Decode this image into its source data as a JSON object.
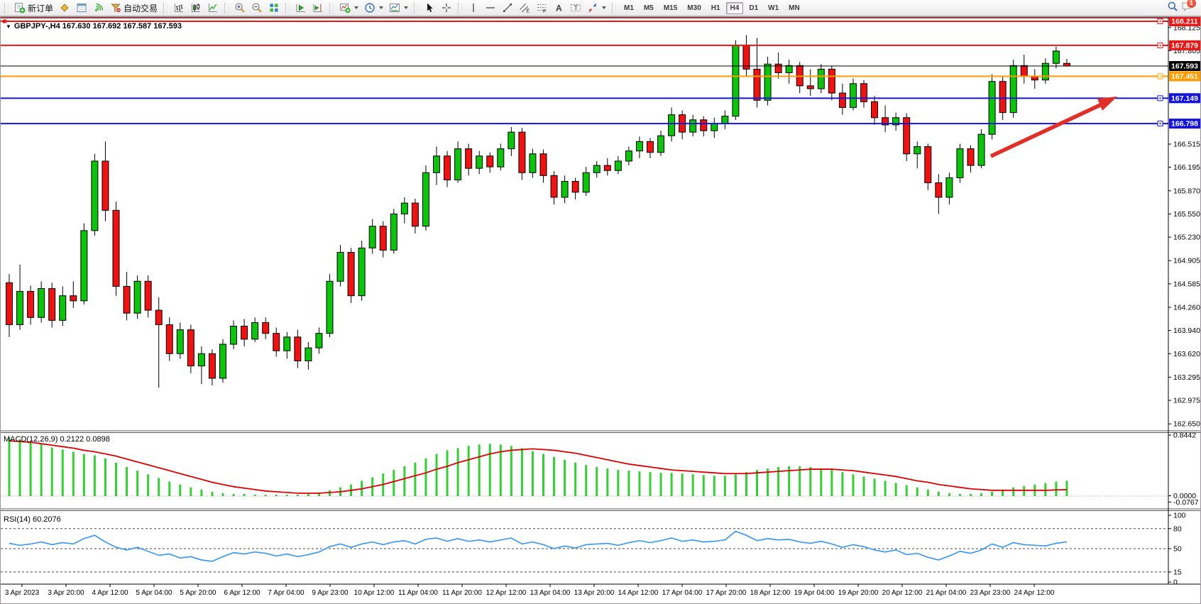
{
  "toolbar": {
    "groups": [
      {
        "items": [
          {
            "icon": "new-order-icon",
            "label": "新订单"
          },
          {
            "icon": "market-watch-icon"
          },
          {
            "icon": "data-window-icon"
          },
          {
            "icon": "signals-icon"
          },
          {
            "icon": "autotrading-icon",
            "label": "自动交易"
          }
        ]
      },
      {
        "items": [
          {
            "icon": "bar-chart-icon"
          },
          {
            "icon": "candle-chart-icon"
          },
          {
            "icon": "line-chart-icon"
          }
        ]
      },
      {
        "items": [
          {
            "icon": "zoom-in-icon"
          },
          {
            "icon": "zoom-out-icon"
          },
          {
            "icon": "tile-windows-icon"
          }
        ]
      },
      {
        "items": [
          {
            "icon": "auto-scroll-icon"
          },
          {
            "icon": "chart-shift-icon"
          }
        ]
      },
      {
        "items": [
          {
            "icon": "indicators-icon",
            "caret": true
          },
          {
            "icon": "periods-icon",
            "caret": true
          },
          {
            "icon": "templates-icon",
            "caret": true
          }
        ]
      },
      {
        "items": [
          {
            "icon": "cursor-icon"
          },
          {
            "icon": "crosshair-icon"
          }
        ]
      },
      {
        "items": [
          {
            "icon": "vline-icon"
          },
          {
            "icon": "hline-icon"
          },
          {
            "icon": "trendline-icon"
          },
          {
            "icon": "channel-icon"
          },
          {
            "icon": "fibonacci-icon"
          },
          {
            "icon": "text-icon"
          },
          {
            "icon": "text-label-icon"
          },
          {
            "icon": "arrows-icon",
            "caret": true
          }
        ]
      }
    ],
    "timeframes": [
      {
        "label": "M1"
      },
      {
        "label": "M5"
      },
      {
        "label": "M15"
      },
      {
        "label": "M30"
      },
      {
        "label": "H1"
      },
      {
        "label": "H4",
        "active": true
      },
      {
        "label": "D1"
      },
      {
        "label": "W1"
      },
      {
        "label": "MN"
      }
    ],
    "right": [
      {
        "icon": "search-icon"
      },
      {
        "icon": "chat-icon",
        "badge": "1"
      }
    ]
  },
  "chart": {
    "symbol_title": "GBPJPY-,H4  167.630 167.692 167.587 167.593",
    "macd_label": "MACD(12,26,9) 0.2122 0.0898",
    "rsi_label": "RSI(14) 60.2076",
    "price_axis_ticks": [
      "168.125",
      "167.805",
      "166.515",
      "166.195",
      "165.870",
      "165.550",
      "165.230",
      "164.905",
      "164.585",
      "164.260",
      "163.940",
      "163.620",
      "163.295",
      "162.975",
      "162.650"
    ],
    "line_labels": [
      {
        "text": "168.211",
        "level": 168.211,
        "color": "#ee1515",
        "style": "resistance"
      },
      {
        "text": "167.879",
        "level": 167.879,
        "color": "#ee1515",
        "style": "resistance"
      },
      {
        "text": "167.593",
        "level": 167.593,
        "color": "#000000",
        "style": "current-price"
      },
      {
        "text": "167.451",
        "level": 167.451,
        "color": "#ff9c00",
        "style": "level"
      },
      {
        "text": "167.149",
        "level": 167.149,
        "color": "#1414dd",
        "style": "support"
      },
      {
        "text": "166.798",
        "level": 166.798,
        "color": "#1414dd",
        "style": "support"
      }
    ],
    "macd_axis": [
      "0.8442",
      "0.0000",
      "-0.0767"
    ],
    "rsi_axis": [
      "100",
      "80",
      "50",
      "15",
      "0"
    ],
    "time_axis": [
      "3 Apr 2023",
      "3 Apr 20:00",
      "4 Apr 12:00",
      "5 Apr 04:00",
      "5 Apr 20:00",
      "6 Apr 12:00",
      "7 Apr 04:00",
      "9 Apr 23:00",
      "10 Apr 12:00",
      "11 Apr 04:00",
      "11 Apr 20:00",
      "12 Apr 12:00",
      "13 Apr 04:00",
      "13 Apr 20:00",
      "14 Apr 12:00",
      "17 Apr 04:00",
      "17 Apr 20:00",
      "18 Apr 12:00",
      "19 Apr 04:00",
      "19 Apr 20:00",
      "20 Apr 12:00",
      "21 Apr 04:00",
      "23 Apr 23:00",
      "24 Apr 12:00"
    ]
  },
  "chart_data": [
    {
      "type": "candlestick",
      "title": "GBPJPY- H4",
      "ylim": [
        162.65,
        168.3
      ],
      "levels": [
        168.211,
        167.879,
        167.593,
        167.451,
        167.149,
        166.798
      ],
      "ohlc": [
        [
          164.6,
          164.72,
          163.85,
          164.02
        ],
        [
          164.02,
          164.85,
          163.95,
          164.48
        ],
        [
          164.48,
          164.56,
          164.02,
          164.12
        ],
        [
          164.12,
          164.62,
          164.05,
          164.52
        ],
        [
          164.52,
          164.6,
          163.98,
          164.08
        ],
        [
          164.08,
          164.55,
          164.0,
          164.42
        ],
        [
          164.42,
          164.62,
          164.25,
          164.35
        ],
        [
          164.35,
          165.42,
          164.3,
          165.32
        ],
        [
          165.32,
          166.38,
          165.25,
          166.28
        ],
        [
          166.28,
          166.55,
          165.45,
          165.6
        ],
        [
          165.6,
          165.72,
          164.42,
          164.55
        ],
        [
          164.55,
          164.75,
          164.08,
          164.18
        ],
        [
          164.18,
          164.7,
          164.1,
          164.62
        ],
        [
          164.62,
          164.7,
          164.12,
          164.22
        ],
        [
          164.22,
          164.4,
          163.15,
          164.02
        ],
        [
          164.02,
          164.12,
          163.52,
          163.62
        ],
        [
          163.62,
          164.05,
          163.55,
          163.95
        ],
        [
          163.95,
          164.02,
          163.35,
          163.45
        ],
        [
          163.45,
          163.72,
          163.2,
          163.62
        ],
        [
          163.62,
          163.68,
          163.18,
          163.28
        ],
        [
          163.28,
          163.82,
          163.22,
          163.75
        ],
        [
          163.75,
          164.08,
          163.68,
          164.0
        ],
        [
          164.0,
          164.1,
          163.72,
          163.82
        ],
        [
          163.82,
          164.12,
          163.78,
          164.05
        ],
        [
          164.05,
          164.12,
          163.82,
          163.9
        ],
        [
          163.9,
          163.98,
          163.58,
          163.66
        ],
        [
          163.66,
          163.92,
          163.55,
          163.85
        ],
        [
          163.85,
          163.95,
          163.42,
          163.52
        ],
        [
          163.52,
          163.78,
          163.4,
          163.7
        ],
        [
          163.7,
          163.98,
          163.62,
          163.9
        ],
        [
          163.9,
          164.72,
          163.85,
          164.62
        ],
        [
          164.62,
          165.12,
          164.55,
          165.02
        ],
        [
          165.02,
          165.08,
          164.32,
          164.42
        ],
        [
          164.42,
          165.18,
          164.35,
          165.08
        ],
        [
          165.08,
          165.48,
          165.0,
          165.38
        ],
        [
          165.38,
          165.45,
          164.95,
          165.05
        ],
        [
          165.05,
          165.62,
          165.0,
          165.55
        ],
        [
          165.55,
          165.78,
          165.42,
          165.7
        ],
        [
          165.7,
          165.76,
          165.28,
          165.38
        ],
        [
          165.38,
          166.22,
          165.32,
          166.12
        ],
        [
          166.12,
          166.48,
          165.95,
          166.35
        ],
        [
          166.35,
          166.42,
          165.92,
          166.02
        ],
        [
          166.02,
          166.55,
          165.98,
          166.45
        ],
        [
          166.45,
          166.52,
          166.08,
          166.18
        ],
        [
          166.18,
          166.42,
          166.1,
          166.35
        ],
        [
          166.35,
          166.4,
          166.12,
          166.2
        ],
        [
          166.2,
          166.52,
          166.15,
          166.45
        ],
        [
          166.45,
          166.75,
          166.35,
          166.68
        ],
        [
          166.68,
          166.74,
          166.02,
          166.12
        ],
        [
          166.12,
          166.45,
          166.05,
          166.38
        ],
        [
          166.38,
          166.44,
          165.98,
          166.08
        ],
        [
          166.08,
          166.14,
          165.68,
          165.78
        ],
        [
          165.78,
          166.08,
          165.7,
          166.0
        ],
        [
          166.0,
          166.05,
          165.75,
          165.85
        ],
        [
          165.85,
          166.2,
          165.8,
          166.12
        ],
        [
          166.12,
          166.28,
          166.05,
          166.22
        ],
        [
          166.22,
          166.32,
          166.08,
          166.15
        ],
        [
          166.15,
          166.35,
          166.1,
          166.28
        ],
        [
          166.28,
          166.48,
          166.22,
          166.42
        ],
        [
          166.42,
          166.62,
          166.32,
          166.55
        ],
        [
          166.55,
          166.6,
          166.32,
          166.4
        ],
        [
          166.4,
          166.7,
          166.35,
          166.63
        ],
        [
          166.63,
          167.02,
          166.55,
          166.92
        ],
        [
          166.92,
          166.98,
          166.58,
          166.68
        ],
        [
          166.68,
          166.92,
          166.62,
          166.85
        ],
        [
          166.85,
          166.9,
          166.62,
          166.7
        ],
        [
          166.7,
          166.88,
          166.6,
          166.8
        ],
        [
          166.8,
          166.98,
          166.72,
          166.9
        ],
        [
          166.9,
          167.95,
          166.85,
          167.88
        ],
        [
          167.88,
          168.02,
          167.45,
          167.55
        ],
        [
          167.55,
          167.98,
          167.02,
          167.12
        ],
        [
          167.12,
          167.72,
          167.05,
          167.62
        ],
        [
          167.62,
          167.78,
          167.42,
          167.5
        ],
        [
          167.5,
          167.68,
          167.35,
          167.6
        ],
        [
          167.6,
          167.65,
          167.22,
          167.32
        ],
        [
          167.32,
          167.55,
          167.18,
          167.28
        ],
        [
          167.28,
          167.62,
          167.22,
          167.55
        ],
        [
          167.55,
          167.6,
          167.12,
          167.22
        ],
        [
          167.22,
          167.35,
          166.92,
          167.02
        ],
        [
          167.02,
          167.42,
          166.98,
          167.35
        ],
        [
          167.35,
          167.4,
          167.02,
          167.1
        ],
        [
          167.1,
          167.18,
          166.78,
          166.88
        ],
        [
          166.88,
          167.05,
          166.68,
          166.78
        ],
        [
          166.78,
          166.95,
          166.7,
          166.88
        ],
        [
          166.88,
          166.94,
          166.28,
          166.38
        ],
        [
          166.38,
          166.55,
          166.18,
          166.48
        ],
        [
          166.48,
          166.52,
          165.88,
          165.98
        ],
        [
          165.98,
          166.1,
          165.55,
          165.78
        ],
        [
          165.78,
          166.12,
          165.68,
          166.05
        ],
        [
          166.05,
          166.52,
          165.98,
          166.45
        ],
        [
          166.45,
          166.5,
          166.12,
          166.22
        ],
        [
          166.22,
          166.72,
          166.18,
          166.65
        ],
        [
          166.65,
          167.48,
          166.58,
          167.38
        ],
        [
          167.38,
          167.45,
          166.85,
          166.95
        ],
        [
          166.95,
          167.68,
          166.88,
          167.6
        ],
        [
          167.6,
          167.75,
          167.35,
          167.45
        ],
        [
          167.45,
          167.55,
          167.28,
          167.4
        ],
        [
          167.4,
          167.7,
          167.35,
          167.63
        ],
        [
          167.63,
          167.86,
          167.56,
          167.8
        ],
        [
          167.63,
          167.692,
          167.587,
          167.593
        ]
      ]
    },
    {
      "type": "bar",
      "title": "MACD(12,26,9)",
      "ylim": [
        -0.0767,
        0.8442
      ],
      "current": [
        0.2122,
        0.0898
      ],
      "values": [
        0.8,
        0.78,
        0.75,
        0.71,
        0.67,
        0.64,
        0.61,
        0.58,
        0.56,
        0.52,
        0.46,
        0.4,
        0.35,
        0.3,
        0.25,
        0.2,
        0.16,
        0.12,
        0.09,
        0.06,
        0.04,
        0.03,
        0.03,
        0.02,
        0.02,
        0.02,
        0.02,
        0.02,
        0.03,
        0.05,
        0.08,
        0.12,
        0.16,
        0.21,
        0.26,
        0.31,
        0.36,
        0.41,
        0.46,
        0.52,
        0.58,
        0.63,
        0.66,
        0.69,
        0.71,
        0.72,
        0.71,
        0.69,
        0.66,
        0.62,
        0.58,
        0.54,
        0.5,
        0.46,
        0.43,
        0.4,
        0.38,
        0.36,
        0.35,
        0.34,
        0.33,
        0.32,
        0.32,
        0.31,
        0.3,
        0.29,
        0.28,
        0.28,
        0.3,
        0.33,
        0.36,
        0.38,
        0.4,
        0.41,
        0.41,
        0.4,
        0.38,
        0.36,
        0.33,
        0.3,
        0.27,
        0.24,
        0.21,
        0.18,
        0.15,
        0.12,
        0.09,
        0.06,
        0.04,
        0.03,
        0.03,
        0.04,
        0.06,
        0.09,
        0.12,
        0.14,
        0.16,
        0.18,
        0.2,
        0.2122
      ],
      "signal": [
        0.76,
        0.75,
        0.74,
        0.72,
        0.7,
        0.68,
        0.66,
        0.63,
        0.61,
        0.58,
        0.55,
        0.51,
        0.47,
        0.43,
        0.39,
        0.35,
        0.31,
        0.27,
        0.23,
        0.19,
        0.16,
        0.13,
        0.11,
        0.09,
        0.07,
        0.06,
        0.05,
        0.04,
        0.04,
        0.04,
        0.05,
        0.06,
        0.08,
        0.1,
        0.13,
        0.16,
        0.2,
        0.24,
        0.28,
        0.32,
        0.37,
        0.41,
        0.46,
        0.5,
        0.54,
        0.58,
        0.61,
        0.63,
        0.64,
        0.65,
        0.64,
        0.63,
        0.61,
        0.59,
        0.56,
        0.53,
        0.5,
        0.47,
        0.44,
        0.42,
        0.4,
        0.38,
        0.36,
        0.35,
        0.34,
        0.33,
        0.32,
        0.31,
        0.31,
        0.31,
        0.32,
        0.33,
        0.34,
        0.35,
        0.36,
        0.37,
        0.37,
        0.37,
        0.36,
        0.35,
        0.33,
        0.31,
        0.29,
        0.27,
        0.24,
        0.21,
        0.19,
        0.16,
        0.14,
        0.12,
        0.1,
        0.09,
        0.08,
        0.08,
        0.08,
        0.08,
        0.08,
        0.08,
        0.085,
        0.0898
      ]
    },
    {
      "type": "line",
      "title": "RSI(14)",
      "ylim": [
        0,
        100
      ],
      "levels": [
        80,
        50,
        15
      ],
      "current": 60.2076,
      "values": [
        58,
        55,
        57,
        60,
        56,
        59,
        57,
        65,
        70,
        60,
        52,
        48,
        52,
        46,
        40,
        42,
        36,
        38,
        33,
        31,
        38,
        44,
        42,
        45,
        43,
        39,
        42,
        38,
        41,
        45,
        53,
        57,
        52,
        57,
        60,
        56,
        60,
        62,
        57,
        64,
        66,
        61,
        65,
        61,
        63,
        60,
        63,
        66,
        57,
        60,
        56,
        50,
        54,
        51,
        56,
        57,
        58,
        55,
        59,
        62,
        59,
        62,
        66,
        61,
        63,
        60,
        61,
        63,
        76,
        70,
        62,
        65,
        63,
        64,
        60,
        58,
        61,
        57,
        52,
        56,
        53,
        48,
        45,
        48,
        41,
        43,
        37,
        33,
        39,
        46,
        43,
        48,
        57,
        52,
        59,
        56,
        55,
        54,
        58,
        60.2076
      ]
    }
  ],
  "colors": {
    "up": "#0cc40c",
    "down": "#ee1212",
    "macd_hist": "#35cf35",
    "macd_signal": "#dd0000",
    "rsi_line": "#3c9bf0",
    "arrow": "#e03028",
    "line_red": "#ee1515",
    "line_orange": "#ff9c00",
    "line_blue": "#1414dd"
  }
}
